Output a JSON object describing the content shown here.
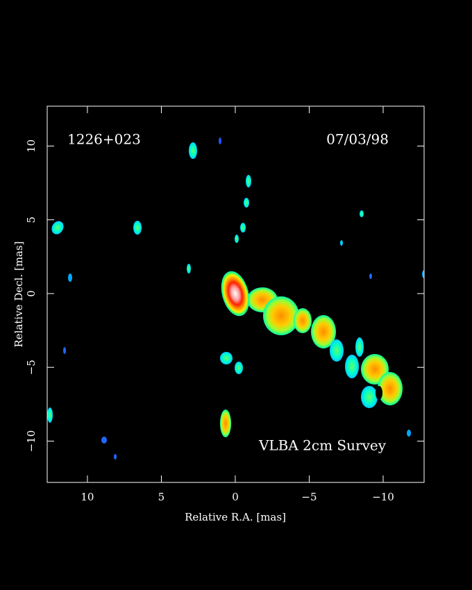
{
  "chart_data": {
    "type": "image",
    "labels": [
      "1226+023",
      "07/03/98",
      "VLBA 2cm Survey"
    ],
    "xlabel": "Relative R.A. [mas]",
    "ylabel": "Relative Decl. [mas]",
    "xlim": [
      12.72,
      -12.77
    ],
    "ylim": [
      -12.8,
      12.7
    ],
    "xticks": [
      10,
      5,
      0,
      {
        "value": -5,
        "label": "−5"
      },
      {
        "value": -10,
        "label": "−10"
      }
    ],
    "yticks": [
      {
        "value": -10,
        "label": "−10"
      },
      {
        "value": -5,
        "label": "−5"
      },
      0,
      5,
      10
    ]
  }
}
